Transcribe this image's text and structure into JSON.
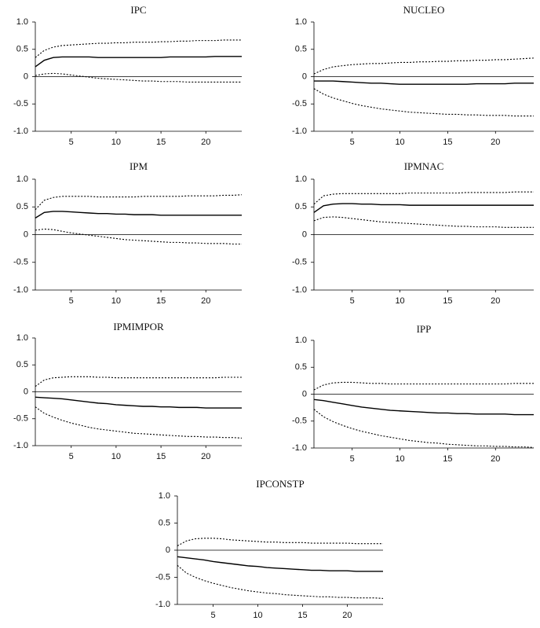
{
  "chart_data": [
    {
      "type": "line",
      "title": "IPC",
      "x": [
        1,
        2,
        3,
        4,
        5,
        6,
        7,
        8,
        9,
        10,
        11,
        12,
        13,
        14,
        15,
        16,
        17,
        18,
        19,
        20,
        21,
        22,
        23,
        24
      ],
      "xlim": [
        1,
        24
      ],
      "xticks": [
        5,
        10,
        15,
        20
      ],
      "ylim": [
        -1,
        1
      ],
      "yticks": [
        {
          "value": -1,
          "label": "-1.0"
        },
        -0.5,
        0,
        0.5,
        {
          "value": 1,
          "label": "1.0"
        }
      ],
      "reference_line": 0,
      "series": [
        {
          "color": "#000",
          "dashed": false,
          "values": [
            0.18,
            0.3,
            0.35,
            0.36,
            0.36,
            0.36,
            0.36,
            0.35,
            0.35,
            0.35,
            0.35,
            0.35,
            0.35,
            0.35,
            0.35,
            0.36,
            0.36,
            0.36,
            0.36,
            0.36,
            0.37,
            0.37,
            0.37,
            0.37
          ]
        },
        {
          "color": "#000",
          "dashed": true,
          "values": [
            0.35,
            0.48,
            0.54,
            0.57,
            0.58,
            0.59,
            0.6,
            0.61,
            0.61,
            0.62,
            0.62,
            0.63,
            0.63,
            0.63,
            0.64,
            0.64,
            0.65,
            0.65,
            0.66,
            0.66,
            0.66,
            0.67,
            0.67,
            0.67
          ]
        },
        {
          "color": "#000",
          "dashed": true,
          "values": [
            0.02,
            0.05,
            0.06,
            0.05,
            0.03,
            0.01,
            -0.01,
            -0.03,
            -0.04,
            -0.05,
            -0.06,
            -0.07,
            -0.08,
            -0.08,
            -0.09,
            -0.09,
            -0.09,
            -0.1,
            -0.1,
            -0.1,
            -0.1,
            -0.1,
            -0.1,
            -0.1
          ]
        }
      ]
    },
    {
      "type": "line",
      "title": "NUCLEO",
      "x": [
        1,
        2,
        3,
        4,
        5,
        6,
        7,
        8,
        9,
        10,
        11,
        12,
        13,
        14,
        15,
        16,
        17,
        18,
        19,
        20,
        21,
        22,
        23,
        24
      ],
      "xlim": [
        1,
        24
      ],
      "xticks": [
        5,
        10,
        15,
        20
      ],
      "ylim": [
        -1,
        1
      ],
      "yticks": [
        {
          "value": -1,
          "label": "-1.0"
        },
        -0.5,
        0,
        0.5,
        {
          "value": 1,
          "label": "1.0"
        }
      ],
      "reference_line": 0,
      "series": [
        {
          "color": "#000",
          "dashed": false,
          "values": [
            -0.08,
            -0.08,
            -0.08,
            -0.09,
            -0.1,
            -0.11,
            -0.12,
            -0.12,
            -0.13,
            -0.14,
            -0.14,
            -0.14,
            -0.14,
            -0.14,
            -0.14,
            -0.14,
            -0.14,
            -0.13,
            -0.13,
            -0.13,
            -0.13,
            -0.12,
            -0.12,
            -0.12
          ]
        },
        {
          "color": "#000",
          "dashed": true,
          "values": [
            0.05,
            0.13,
            0.18,
            0.2,
            0.22,
            0.23,
            0.24,
            0.24,
            0.25,
            0.26,
            0.26,
            0.27,
            0.27,
            0.28,
            0.28,
            0.29,
            0.29,
            0.3,
            0.3,
            0.31,
            0.31,
            0.32,
            0.33,
            0.34
          ]
        },
        {
          "color": "#000",
          "dashed": true,
          "values": [
            -0.22,
            -0.32,
            -0.39,
            -0.44,
            -0.49,
            -0.53,
            -0.56,
            -0.59,
            -0.61,
            -0.63,
            -0.65,
            -0.66,
            -0.67,
            -0.68,
            -0.69,
            -0.69,
            -0.7,
            -0.7,
            -0.71,
            -0.71,
            -0.71,
            -0.72,
            -0.72,
            -0.72
          ]
        }
      ]
    },
    {
      "type": "line",
      "title": "IPM",
      "x": [
        1,
        2,
        3,
        4,
        5,
        6,
        7,
        8,
        9,
        10,
        11,
        12,
        13,
        14,
        15,
        16,
        17,
        18,
        19,
        20,
        21,
        22,
        23,
        24
      ],
      "xlim": [
        1,
        24
      ],
      "xticks": [
        5,
        10,
        15,
        20
      ],
      "ylim": [
        -1,
        1
      ],
      "yticks": [
        {
          "value": -1,
          "label": "-1.0"
        },
        -0.5,
        0,
        0.5,
        {
          "value": 1,
          "label": "1.0"
        }
      ],
      "reference_line": 0,
      "series": [
        {
          "color": "#000",
          "dashed": false,
          "values": [
            0.3,
            0.4,
            0.42,
            0.42,
            0.41,
            0.4,
            0.39,
            0.38,
            0.38,
            0.37,
            0.37,
            0.36,
            0.36,
            0.36,
            0.35,
            0.35,
            0.35,
            0.35,
            0.35,
            0.35,
            0.35,
            0.35,
            0.35,
            0.35
          ]
        },
        {
          "color": "#000",
          "dashed": true,
          "values": [
            0.45,
            0.62,
            0.67,
            0.69,
            0.69,
            0.69,
            0.69,
            0.68,
            0.68,
            0.68,
            0.68,
            0.68,
            0.69,
            0.69,
            0.69,
            0.69,
            0.69,
            0.7,
            0.7,
            0.7,
            0.7,
            0.71,
            0.71,
            0.72
          ]
        },
        {
          "color": "#000",
          "dashed": true,
          "values": [
            0.08,
            0.1,
            0.09,
            0.06,
            0.03,
            0.01,
            -0.01,
            -0.03,
            -0.05,
            -0.07,
            -0.09,
            -0.1,
            -0.11,
            -0.12,
            -0.13,
            -0.14,
            -0.14,
            -0.15,
            -0.15,
            -0.16,
            -0.16,
            -0.16,
            -0.17,
            -0.17
          ]
        }
      ]
    },
    {
      "type": "line",
      "title": "IPMNAC",
      "x": [
        1,
        2,
        3,
        4,
        5,
        6,
        7,
        8,
        9,
        10,
        11,
        12,
        13,
        14,
        15,
        16,
        17,
        18,
        19,
        20,
        21,
        22,
        23,
        24
      ],
      "xlim": [
        1,
        24
      ],
      "xticks": [
        5,
        10,
        15,
        20
      ],
      "ylim": [
        -1,
        1
      ],
      "yticks": [
        {
          "value": -1,
          "label": "-1.0"
        },
        -0.5,
        0,
        0.5,
        {
          "value": 1,
          "label": "1.0"
        }
      ],
      "reference_line": 0,
      "series": [
        {
          "color": "#000",
          "dashed": false,
          "values": [
            0.4,
            0.52,
            0.55,
            0.56,
            0.56,
            0.55,
            0.55,
            0.54,
            0.54,
            0.54,
            0.53,
            0.53,
            0.53,
            0.53,
            0.53,
            0.53,
            0.53,
            0.53,
            0.53,
            0.53,
            0.53,
            0.53,
            0.53,
            0.53
          ]
        },
        {
          "color": "#000",
          "dashed": true,
          "values": [
            0.55,
            0.7,
            0.73,
            0.74,
            0.74,
            0.74,
            0.74,
            0.74,
            0.74,
            0.74,
            0.75,
            0.75,
            0.75,
            0.75,
            0.75,
            0.75,
            0.76,
            0.76,
            0.76,
            0.76,
            0.76,
            0.77,
            0.77,
            0.77
          ]
        },
        {
          "color": "#000",
          "dashed": true,
          "values": [
            0.25,
            0.31,
            0.32,
            0.31,
            0.29,
            0.27,
            0.25,
            0.23,
            0.22,
            0.21,
            0.2,
            0.19,
            0.18,
            0.17,
            0.16,
            0.15,
            0.15,
            0.14,
            0.14,
            0.14,
            0.13,
            0.13,
            0.13,
            0.13
          ]
        }
      ]
    },
    {
      "type": "line",
      "title": "IPMIMPOR",
      "x": [
        1,
        2,
        3,
        4,
        5,
        6,
        7,
        8,
        9,
        10,
        11,
        12,
        13,
        14,
        15,
        16,
        17,
        18,
        19,
        20,
        21,
        22,
        23,
        24
      ],
      "xlim": [
        1,
        24
      ],
      "xticks": [
        5,
        10,
        15,
        20
      ],
      "ylim": [
        -1,
        1
      ],
      "yticks": [
        {
          "value": -1,
          "label": "-1.0"
        },
        -0.5,
        0,
        0.5,
        {
          "value": 1,
          "label": "1.0"
        }
      ],
      "reference_line": 0,
      "series": [
        {
          "color": "#000",
          "dashed": false,
          "values": [
            -0.1,
            -0.11,
            -0.12,
            -0.13,
            -0.15,
            -0.17,
            -0.19,
            -0.21,
            -0.22,
            -0.24,
            -0.25,
            -0.26,
            -0.27,
            -0.27,
            -0.28,
            -0.28,
            -0.29,
            -0.29,
            -0.29,
            -0.3,
            -0.3,
            -0.3,
            -0.3,
            -0.3
          ]
        },
        {
          "color": "#000",
          "dashed": true,
          "values": [
            0.1,
            0.22,
            0.26,
            0.27,
            0.28,
            0.28,
            0.28,
            0.27,
            0.27,
            0.26,
            0.26,
            0.26,
            0.26,
            0.26,
            0.26,
            0.26,
            0.26,
            0.26,
            0.26,
            0.26,
            0.26,
            0.27,
            0.27,
            0.27
          ]
        },
        {
          "color": "#000",
          "dashed": true,
          "values": [
            -0.28,
            -0.4,
            -0.47,
            -0.53,
            -0.58,
            -0.62,
            -0.66,
            -0.69,
            -0.71,
            -0.73,
            -0.75,
            -0.77,
            -0.78,
            -0.79,
            -0.8,
            -0.81,
            -0.82,
            -0.83,
            -0.83,
            -0.84,
            -0.84,
            -0.85,
            -0.85,
            -0.86
          ]
        }
      ]
    },
    {
      "type": "line",
      "title": "IPP",
      "x": [
        1,
        2,
        3,
        4,
        5,
        6,
        7,
        8,
        9,
        10,
        11,
        12,
        13,
        14,
        15,
        16,
        17,
        18,
        19,
        20,
        21,
        22,
        23,
        24
      ],
      "xlim": [
        1,
        24
      ],
      "xticks": [
        5,
        10,
        15,
        20
      ],
      "ylim": [
        -1,
        1
      ],
      "yticks": [
        {
          "value": -1,
          "label": "-1.0"
        },
        -0.5,
        0,
        0.5,
        {
          "value": 1,
          "label": "1.0"
        }
      ],
      "reference_line": 0,
      "series": [
        {
          "color": "#000",
          "dashed": false,
          "values": [
            -0.1,
            -0.12,
            -0.15,
            -0.18,
            -0.21,
            -0.24,
            -0.26,
            -0.28,
            -0.3,
            -0.31,
            -0.32,
            -0.33,
            -0.34,
            -0.35,
            -0.35,
            -0.36,
            -0.36,
            -0.37,
            -0.37,
            -0.37,
            -0.37,
            -0.38,
            -0.38,
            -0.38
          ]
        },
        {
          "color": "#000",
          "dashed": true,
          "values": [
            0.08,
            0.17,
            0.21,
            0.22,
            0.22,
            0.21,
            0.2,
            0.2,
            0.19,
            0.19,
            0.19,
            0.19,
            0.19,
            0.19,
            0.19,
            0.19,
            0.19,
            0.19,
            0.19,
            0.19,
            0.19,
            0.2,
            0.2,
            0.2
          ]
        },
        {
          "color": "#000",
          "dashed": true,
          "values": [
            -0.28,
            -0.42,
            -0.51,
            -0.58,
            -0.64,
            -0.69,
            -0.73,
            -0.77,
            -0.8,
            -0.83,
            -0.86,
            -0.88,
            -0.9,
            -0.91,
            -0.93,
            -0.94,
            -0.95,
            -0.96,
            -0.96,
            -0.97,
            -0.97,
            -0.98,
            -0.98,
            -0.99
          ]
        }
      ]
    },
    {
      "type": "line",
      "title": "IPCONSTP",
      "x": [
        1,
        2,
        3,
        4,
        5,
        6,
        7,
        8,
        9,
        10,
        11,
        12,
        13,
        14,
        15,
        16,
        17,
        18,
        19,
        20,
        21,
        22,
        23,
        24
      ],
      "xlim": [
        1,
        24
      ],
      "xticks": [
        5,
        10,
        15,
        20
      ],
      "ylim": [
        -1,
        1
      ],
      "yticks": [
        {
          "value": -1,
          "label": "-1.0"
        },
        -0.5,
        0,
        0.5,
        {
          "value": 1,
          "label": "1.0"
        }
      ],
      "reference_line": 0,
      "series": [
        {
          "color": "#000",
          "dashed": false,
          "values": [
            -0.12,
            -0.14,
            -0.16,
            -0.18,
            -0.21,
            -0.23,
            -0.25,
            -0.27,
            -0.29,
            -0.3,
            -0.32,
            -0.33,
            -0.34,
            -0.35,
            -0.36,
            -0.37,
            -0.37,
            -0.38,
            -0.38,
            -0.38,
            -0.39,
            -0.39,
            -0.39,
            -0.39
          ]
        },
        {
          "color": "#000",
          "dashed": true,
          "values": [
            0.08,
            0.17,
            0.21,
            0.22,
            0.22,
            0.21,
            0.19,
            0.18,
            0.17,
            0.16,
            0.15,
            0.15,
            0.14,
            0.14,
            0.14,
            0.13,
            0.13,
            0.13,
            0.13,
            0.13,
            0.12,
            0.12,
            0.12,
            0.12
          ]
        },
        {
          "color": "#000",
          "dashed": true,
          "values": [
            -0.28,
            -0.42,
            -0.5,
            -0.56,
            -0.61,
            -0.65,
            -0.69,
            -0.72,
            -0.75,
            -0.77,
            -0.79,
            -0.8,
            -0.82,
            -0.83,
            -0.84,
            -0.85,
            -0.86,
            -0.86,
            -0.87,
            -0.87,
            -0.88,
            -0.88,
            -0.88,
            -0.89
          ]
        }
      ]
    }
  ]
}
